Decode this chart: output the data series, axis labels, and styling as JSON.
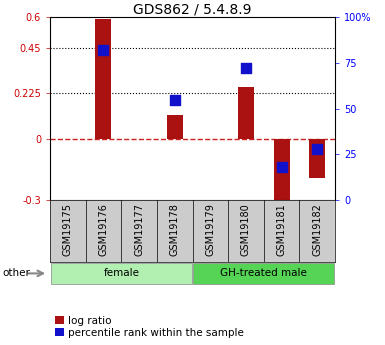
{
  "title": "GDS862 / 5.4.8.9",
  "samples": [
    "GSM19175",
    "GSM19176",
    "GSM19177",
    "GSM19178",
    "GSM19179",
    "GSM19180",
    "GSM19181",
    "GSM19182"
  ],
  "log_ratio": [
    0.0,
    0.59,
    0.0,
    0.12,
    0.0,
    0.255,
    -0.33,
    -0.19
  ],
  "percentile_rank": [
    null,
    82,
    null,
    55,
    null,
    72,
    18,
    28
  ],
  "groups": [
    {
      "label": "female",
      "start": 0,
      "end": 4,
      "color": "#b2f0b2"
    },
    {
      "label": "GH-treated male",
      "start": 4,
      "end": 8,
      "color": "#55d455"
    }
  ],
  "ylim_left": [
    -0.3,
    0.6
  ],
  "ylim_right": [
    0,
    100
  ],
  "yticks_left": [
    -0.3,
    0,
    0.225,
    0.45,
    0.6
  ],
  "yticks_right": [
    0,
    25,
    50,
    75,
    100
  ],
  "ytick_labels_left": [
    "-0.3",
    "0",
    "0.225",
    "0.45",
    "0.6"
  ],
  "ytick_labels_right": [
    "0",
    "25",
    "50",
    "75",
    "100%"
  ],
  "hlines": [
    0.225,
    0.45
  ],
  "bar_color": "#aa1111",
  "dot_color": "#1111cc",
  "bar_width": 0.45,
  "dot_size": 55,
  "zero_line_color": "#cc2222",
  "zero_line_style": "--",
  "hline_color": "black",
  "hline_style": ":",
  "plot_bg": "white",
  "xtick_bg": "#cccccc",
  "legend_items": [
    "log ratio",
    "percentile rank within the sample"
  ],
  "other_label": "other",
  "title_fontsize": 10,
  "tick_fontsize": 7,
  "label_fontsize": 7.5,
  "legend_fontsize": 7.5
}
